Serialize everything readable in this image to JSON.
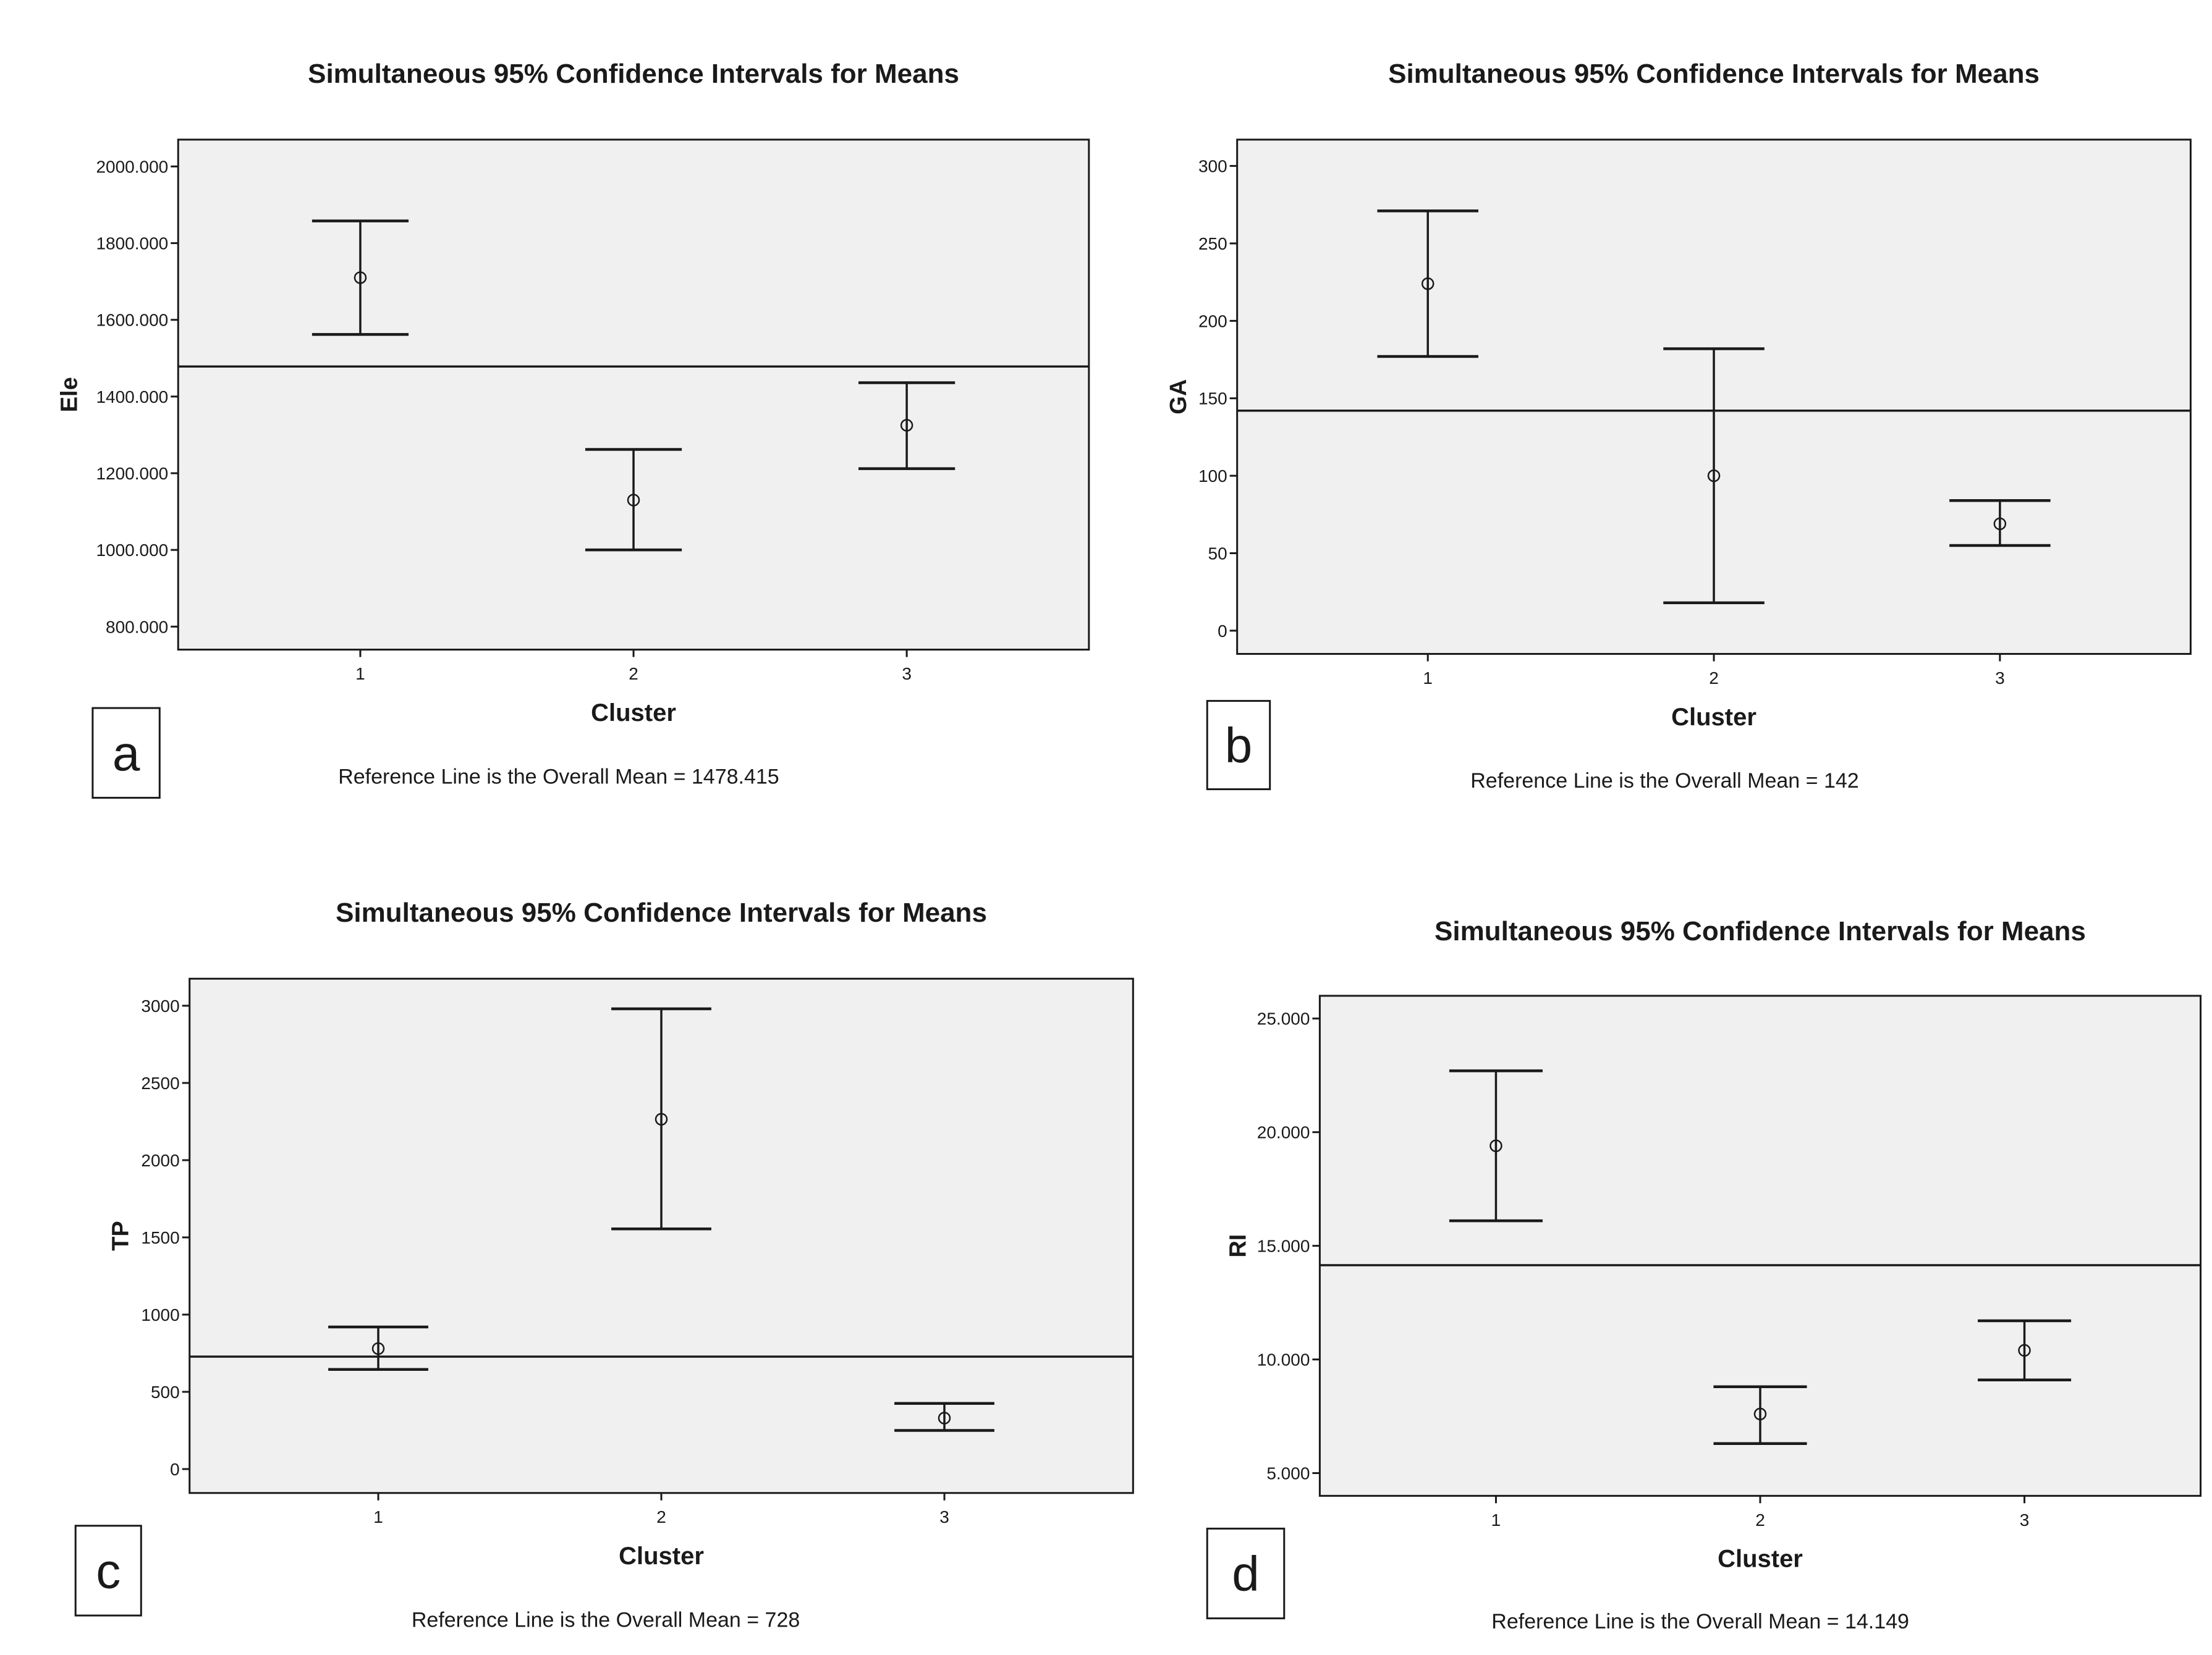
{
  "chart_data": [
    {
      "panel": "a",
      "type": "errorbar",
      "title": "Simultaneous 95% Confidence Intervals for Means",
      "xlabel": "Cluster",
      "ylabel": "Ele",
      "categories": [
        "1",
        "2",
        "3"
      ],
      "means": [
        1710,
        1130,
        1325
      ],
      "lower": [
        1562,
        1000,
        1212
      ],
      "upper": [
        1858,
        1262,
        1436
      ],
      "yticks": [
        800,
        1000,
        1200,
        1400,
        1600,
        1800,
        2000
      ],
      "ytick_labels": [
        "800.000",
        "1000.000",
        "1200.000",
        "1400.000",
        "1600.000",
        "1800.000",
        "2000.000"
      ],
      "ylim": [
        740,
        2070
      ],
      "reference_value": 1478.415,
      "footnote": "Reference Line is the Overall Mean = 1478.415"
    },
    {
      "panel": "b",
      "type": "errorbar",
      "title": "Simultaneous 95% Confidence Intervals for Means",
      "xlabel": "Cluster",
      "ylabel": "GA",
      "categories": [
        "1",
        "2",
        "3"
      ],
      "means": [
        224,
        100,
        69
      ],
      "lower": [
        177,
        18,
        55
      ],
      "upper": [
        271,
        182,
        84
      ],
      "yticks": [
        0,
        50,
        100,
        150,
        200,
        250,
        300
      ],
      "ytick_labels": [
        "0",
        "50",
        "100",
        "150",
        "200",
        "250",
        "300"
      ],
      "ylim": [
        -15,
        317
      ],
      "reference_value": 142,
      "footnote": "Reference Line is the Overall Mean = 142"
    },
    {
      "panel": "c",
      "type": "errorbar",
      "title": "Simultaneous 95% Confidence Intervals for Means",
      "xlabel": "Cluster",
      "ylabel": "TP",
      "categories": [
        "1",
        "2",
        "3"
      ],
      "means": [
        780,
        2265,
        330
      ],
      "lower": [
        645,
        1555,
        250
      ],
      "upper": [
        920,
        2980,
        425
      ],
      "yticks": [
        0,
        500,
        1000,
        1500,
        2000,
        2500,
        3000
      ],
      "ytick_labels": [
        "0",
        "500",
        "1000",
        "1500",
        "2000",
        "2500",
        "3000"
      ],
      "ylim": [
        -155,
        3175
      ],
      "reference_value": 728,
      "footnote": "Reference Line is the Overall Mean = 728"
    },
    {
      "panel": "d",
      "type": "errorbar",
      "title": "Simultaneous 95% Confidence Intervals for Means",
      "xlabel": "Cluster",
      "ylabel": "RI",
      "categories": [
        "1",
        "2",
        "3"
      ],
      "means": [
        19.4,
        7.6,
        10.4
      ],
      "lower": [
        16.1,
        6.3,
        9.1
      ],
      "upper": [
        22.7,
        8.8,
        11.7
      ],
      "yticks": [
        5,
        10,
        15,
        20,
        25
      ],
      "ytick_labels": [
        "5.000",
        "10.000",
        "15.000",
        "20.000",
        "25.000"
      ],
      "ylim": [
        4,
        26
      ],
      "reference_value": 14.149,
      "footnote": "Reference Line is the Overall Mean = 14.149"
    }
  ],
  "colors": {
    "plot_background": "#f0f0f0",
    "ink": "#1a1a1a",
    "page": "#ffffff"
  }
}
